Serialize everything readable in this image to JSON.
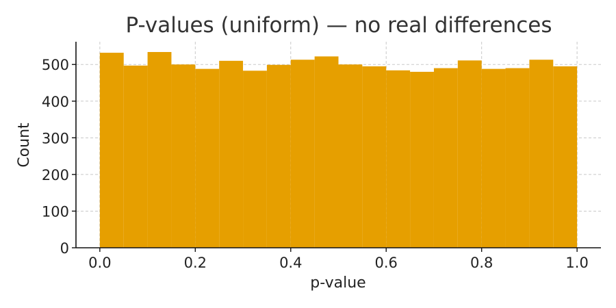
{
  "chart_data": {
    "type": "bar",
    "subtype": "histogram",
    "title": "P-values (uniform) — no real differences",
    "xlabel": "p-value",
    "ylabel": "Count",
    "bin_edges": [
      0.0,
      0.05,
      0.1,
      0.15,
      0.2,
      0.25,
      0.3,
      0.35,
      0.4,
      0.45,
      0.5,
      0.55,
      0.6,
      0.65,
      0.7,
      0.75,
      0.8,
      0.85,
      0.9,
      0.95,
      1.0
    ],
    "values": [
      532,
      497,
      534,
      500,
      488,
      510,
      483,
      499,
      513,
      522,
      500,
      495,
      484,
      480,
      490,
      511,
      488,
      490,
      513,
      495
    ],
    "xlim": [
      -0.05,
      1.05
    ],
    "ylim": [
      0,
      562
    ],
    "xticks": [
      0.0,
      0.2,
      0.4,
      0.6,
      0.8,
      1.0
    ],
    "xtick_labels": [
      "0.0",
      "0.2",
      "0.4",
      "0.6",
      "0.8",
      "1.0"
    ],
    "yticks": [
      0,
      100,
      200,
      300,
      400,
      500
    ],
    "ytick_labels": [
      "0",
      "100",
      "200",
      "300",
      "400",
      "500"
    ],
    "bar_color": "#E69F00",
    "grid": true,
    "grid_style": "dashed",
    "legend": false
  }
}
